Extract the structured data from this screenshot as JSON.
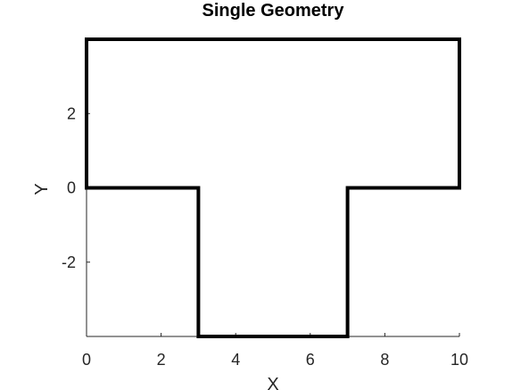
{
  "chart_data": {
    "type": "line",
    "title": "Single Geometry",
    "xlabel": "X",
    "ylabel": "Y",
    "xlim": [
      0,
      10
    ],
    "ylim": [
      -4,
      4
    ],
    "xticks": [
      0,
      2,
      4,
      6,
      8,
      10
    ],
    "yticks": [
      -2,
      0,
      2
    ],
    "grid": false,
    "line_color": "#000000",
    "axis_color": "#262626",
    "series": [
      {
        "x": [
          0,
          10,
          10,
          7,
          7,
          3,
          3,
          0,
          0
        ],
        "y": [
          4,
          4,
          0,
          0,
          -4,
          -4,
          0,
          0,
          4
        ]
      }
    ]
  }
}
